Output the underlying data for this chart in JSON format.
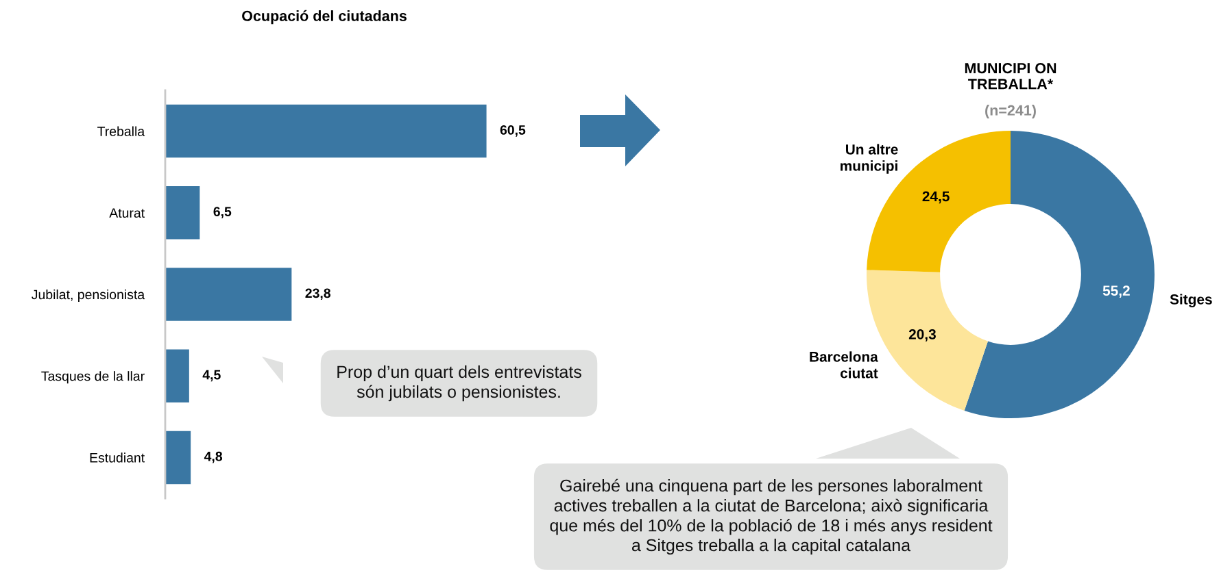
{
  "chart_data": [
    {
      "type": "bar",
      "orientation": "horizontal",
      "title": "Ocupació del ciutadans",
      "categories": [
        "Treballa",
        "Aturat",
        "Jubilat, pensionista",
        "Tasques de la llar",
        "Estudiant"
      ],
      "values": [
        60.5,
        6.5,
        23.8,
        4.5,
        4.8
      ],
      "value_labels": [
        "60,5",
        "6,5",
        "23,8",
        "4,5",
        "4,8"
      ],
      "color": "#3a77a3",
      "tick_labels": "y",
      "grid": false,
      "annotations": [
        "Prop d’un quart dels entrevistats\nsón jubilats o pensionistes."
      ]
    },
    {
      "type": "donut",
      "title": "MUNICIPI ON\nTREBALLA*",
      "subtitle": "(n=241)",
      "categories": [
        "Sitges",
        "Barcelona\nciutat",
        "Un altre\nmunicipi"
      ],
      "values": [
        55.2,
        20.3,
        24.5
      ],
      "value_labels": [
        "55,2",
        "20,3",
        "24,5"
      ],
      "colors": [
        "#3a77a3",
        "#fde59a",
        "#f5c000"
      ],
      "annotations": [
        "Gairebé una cinquena part de les persones laboralment\nactives treballen a la ciutat de Barcelona; això significaria\nque més del 10% de la població de 18 i més anys resident\na Sitges treballa a la capital catalana"
      ]
    }
  ]
}
